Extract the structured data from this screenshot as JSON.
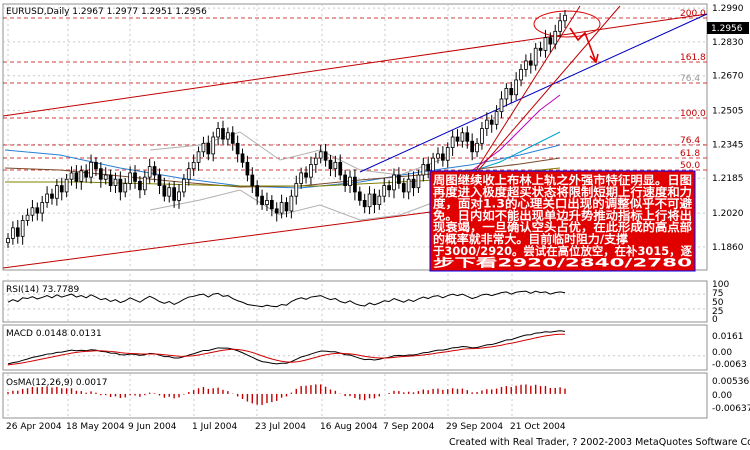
{
  "window": {
    "symbol_line": "EURUSD,Daily  1.2967 1.2977 1.2951 1.2956",
    "price_box": "1.2956",
    "credit": "Created with Real Trader, ? 2002-2003 MetaQuotes Software Corp."
  },
  "annotation": {
    "lines": [
      "周图继续收上布林上轨之外强市特征明显。日图",
      "再度进入极度超买状态将限制短期上行速度和力",
      "度，面对1.3的心理关口出现的调整似乎不可避",
      "免。日内如不能出现单边升势推动指标上行将出",
      "现衰竭，一旦确认空头占优，在此形成的高点部",
      "的概率就非常大。目前临时阻力/支撑",
      "于3000/2920。尝试在高位放空，在补3015，逐",
      "步下看2920/2840/2780"
    ],
    "bg": "#e00000",
    "border": "#0000ff"
  },
  "fib_labels": [
    "200.0",
    "161.8",
    "76.4",
    "100.0",
    "76.4",
    "61.8",
    "50.0"
  ],
  "colors": {
    "candle_up": "#000000",
    "candle_down": "#000000",
    "grid": "#c8c8c8",
    "fib_line": "#c00000",
    "trend_blue": "#0000c0",
    "price_box_bg": "#000000"
  },
  "chart_data": [
    {
      "type": "candlestick",
      "title": "EURUSD,Daily  1.2967 1.2977 1.2951 1.2956",
      "y_ticks": [
        "1.2990",
        "1.2830",
        "1.2670",
        "1.2505",
        "1.2345",
        "1.2185",
        "1.2020",
        "1.1860"
      ],
      "ylim": [
        1.176,
        1.3
      ],
      "x_ticks": [
        "26 Apr 2004",
        "18 May 2004",
        "9 Jun 2004",
        "1 Jul 2004",
        "23 Jul 2004",
        "16 Aug 2004",
        "7 Sep 2004",
        "29 Sep 2004",
        "21 Oct 2004"
      ],
      "close": [
        1.19,
        1.195,
        1.191,
        1.1985,
        1.201,
        1.2045,
        1.202,
        1.207,
        1.211,
        1.209,
        1.215,
        1.212,
        1.218,
        1.221,
        1.217,
        1.222,
        1.219,
        1.226,
        1.223,
        1.218,
        1.22,
        1.215,
        1.218,
        1.212,
        1.216,
        1.221,
        1.217,
        1.213,
        1.219,
        1.224,
        1.22,
        1.215,
        1.21,
        1.214,
        1.208,
        1.212,
        1.218,
        1.223,
        1.226,
        1.231,
        1.235,
        1.23,
        1.238,
        1.242,
        1.237,
        1.24,
        1.235,
        1.23,
        1.226,
        1.22,
        1.215,
        1.21,
        1.206,
        1.208,
        1.204,
        1.202,
        1.207,
        1.203,
        1.21,
        1.216,
        1.221,
        1.219,
        1.225,
        1.228,
        1.231,
        1.227,
        1.223,
        1.226,
        1.22,
        1.215,
        1.219,
        1.212,
        1.208,
        1.205,
        1.211,
        1.206,
        1.21,
        1.215,
        1.213,
        1.22,
        1.216,
        1.212,
        1.218,
        1.214,
        1.22,
        1.225,
        1.222,
        1.228,
        1.23,
        1.227,
        1.233,
        1.238,
        1.236,
        1.24,
        1.236,
        1.231,
        1.235,
        1.242,
        1.246,
        1.244,
        1.25,
        1.256,
        1.261,
        1.258,
        1.265,
        1.27,
        1.274,
        1.272,
        1.28,
        1.279,
        1.285,
        1.282,
        1.288,
        1.293,
        1.2956
      ]
    },
    {
      "type": "line",
      "title": "RSI(14) 73.7789",
      "y_ticks": [
        "100",
        "75",
        "50",
        "25",
        "0"
      ],
      "ylim": [
        0,
        100
      ],
      "values": [
        48,
        55,
        50,
        60,
        58,
        63,
        57,
        61,
        66,
        60,
        68,
        62,
        66,
        70,
        62,
        66,
        60,
        68,
        62,
        55,
        58,
        50,
        55,
        47,
        52,
        60,
        54,
        48,
        57,
        64,
        58,
        50,
        45,
        50,
        42,
        48,
        56,
        62,
        64,
        68,
        70,
        62,
        70,
        72,
        64,
        66,
        58,
        52,
        48,
        42,
        40,
        38,
        36,
        40,
        37,
        36,
        42,
        40,
        50,
        56,
        60,
        56,
        62,
        64,
        66,
        60,
        55,
        58,
        50,
        46,
        52,
        44,
        40,
        38,
        46,
        41,
        46,
        52,
        50,
        58,
        53,
        48,
        55,
        50,
        57,
        62,
        58,
        64,
        66,
        60,
        66,
        70,
        66,
        70,
        64,
        58,
        62,
        68,
        70,
        66,
        70,
        74,
        76,
        70,
        75,
        77,
        78,
        72,
        78,
        74,
        76,
        70,
        74,
        76,
        73.78
      ]
    },
    {
      "type": "line",
      "title": "MACD  0.0148 0.0131",
      "y_ticks": [
        "0.0161",
        "0.00",
        "-0.0063"
      ],
      "ylim": [
        -0.0075,
        0.0175
      ],
      "series": [
        {
          "values": [
            -0.005,
            -0.0042,
            -0.0038,
            -0.0028,
            -0.002,
            -0.001,
            -0.0005,
            0.0002,
            0.001,
            0.0012,
            0.002,
            0.0022,
            0.0028,
            0.0034,
            0.003,
            0.0033,
            0.003,
            0.0036,
            0.0034,
            0.0026,
            0.0024,
            0.0016,
            0.0015,
            0.0006,
            0.0005,
            0.001,
            0.0008,
            0.0002,
            0.0006,
            0.0014,
            0.0012,
            0.0004,
            -0.0006,
            -0.0006,
            -0.0014,
            -0.0014,
            -0.0006,
            0.0004,
            0.0012,
            0.0022,
            0.0032,
            0.0032,
            0.004,
            0.0048,
            0.0046,
            0.0046,
            0.004,
            0.003,
            0.0018,
            0.0004,
            -0.001,
            -0.0024,
            -0.0036,
            -0.004,
            -0.0046,
            -0.005,
            -0.0046,
            -0.0046,
            -0.0036,
            -0.0022,
            -0.0008,
            0.0,
            0.001,
            0.002,
            0.0028,
            0.0028,
            0.0024,
            0.0024,
            0.0016,
            0.0006,
            0.0004,
            -0.0006,
            -0.0016,
            -0.0024,
            -0.0022,
            -0.0026,
            -0.0022,
            -0.0014,
            -0.001,
            0.0,
            0.0002,
            0.0,
            0.0004,
            0.0004,
            0.001,
            0.0018,
            0.002,
            0.0028,
            0.0034,
            0.0034,
            0.004,
            0.0048,
            0.005,
            0.0056,
            0.0054,
            0.0048,
            0.005,
            0.0058,
            0.0066,
            0.0068,
            0.0076,
            0.0086,
            0.0096,
            0.0098,
            0.0108,
            0.0118,
            0.0126,
            0.0128,
            0.0138,
            0.014,
            0.0146,
            0.0144,
            0.0148,
            0.0152,
            0.0148
          ]
        },
        {
          "values": [
            -0.0056,
            -0.0052,
            -0.0048,
            -0.0044,
            -0.0038,
            -0.0032,
            -0.0026,
            -0.002,
            -0.0014,
            -0.0008,
            -0.0002,
            0.0004,
            0.001,
            0.0016,
            0.002,
            0.0024,
            0.0026,
            0.0028,
            0.003,
            0.003,
            0.0028,
            0.0026,
            0.0023,
            0.0019,
            0.0016,
            0.0014,
            0.0013,
            0.0011,
            0.001,
            0.001,
            0.001,
            0.0009,
            0.0006,
            0.0003,
            0.0,
            -0.0003,
            -0.0004,
            -0.0002,
            0.0,
            0.0004,
            0.001,
            0.0016,
            0.0022,
            0.0028,
            0.0033,
            0.0037,
            0.0039,
            0.0038,
            0.0034,
            0.0028,
            0.002,
            0.001,
            -0.0001,
            -0.0011,
            -0.002,
            -0.0028,
            -0.0034,
            -0.0038,
            -0.004,
            -0.0038,
            -0.0033,
            -0.0026,
            -0.0018,
            -0.001,
            -0.0002,
            0.0005,
            0.001,
            0.0014,
            0.0015,
            0.0013,
            0.0011,
            0.0007,
            0.0002,
            -0.0004,
            -0.0008,
            -0.0012,
            -0.0014,
            -0.0014,
            -0.0013,
            -0.001,
            -0.0007,
            -0.0005,
            -0.0003,
            -0.0001,
            0.0001,
            0.0004,
            0.0008,
            0.0012,
            0.0017,
            0.0021,
            0.0025,
            0.003,
            0.0034,
            0.0039,
            0.0042,
            0.0043,
            0.0044,
            0.0047,
            0.0051,
            0.0054,
            0.0059,
            0.0064,
            0.0071,
            0.0076,
            0.0082,
            0.0089,
            0.0096,
            0.0102,
            0.0109,
            0.0115,
            0.0121,
            0.0125,
            0.0129,
            0.0131,
            0.0131
          ]
        }
      ]
    },
    {
      "type": "bar",
      "title": "OsMA(12,26,9)  0.0017",
      "y_ticks": [
        "0.00536",
        "0.00",
        "-0.00637"
      ],
      "ylim": [
        -0.007,
        0.006
      ],
      "values": [
        0.0006,
        0.001,
        0.001,
        0.0016,
        0.0018,
        0.0022,
        0.0021,
        0.0022,
        0.0024,
        0.002,
        0.0022,
        0.0018,
        0.0018,
        0.0018,
        0.001,
        0.0009,
        0.0004,
        0.0008,
        0.0004,
        -0.0004,
        -0.0004,
        -0.001,
        -0.0008,
        -0.0013,
        -0.0011,
        -0.0004,
        -0.0005,
        -0.0009,
        -0.0004,
        0.0004,
        0.0002,
        -0.0005,
        -0.0012,
        -0.0009,
        -0.0014,
        -0.0011,
        -0.0002,
        0.0006,
        0.0012,
        0.0018,
        0.0022,
        0.0016,
        0.0018,
        0.002,
        0.0013,
        0.0009,
        0.0001,
        -0.0008,
        -0.0016,
        -0.0024,
        -0.003,
        -0.0034,
        -0.0035,
        -0.0029,
        -0.0026,
        -0.0022,
        -0.0012,
        -0.0008,
        0.0004,
        0.0016,
        0.0025,
        0.0026,
        0.0028,
        0.003,
        0.003,
        0.0023,
        0.0014,
        0.001,
        0.0001,
        -0.0007,
        -0.0007,
        -0.0013,
        -0.0018,
        -0.002,
        -0.0014,
        -0.0014,
        -0.0008,
        0.0,
        0.0003,
        0.001,
        0.0009,
        0.0005,
        0.0007,
        0.0005,
        0.0009,
        0.0014,
        0.0012,
        0.0016,
        0.0017,
        0.0013,
        0.0015,
        0.0018,
        0.0016,
        0.0017,
        0.0012,
        0.0005,
        0.0006,
        0.0011,
        0.0015,
        0.0014,
        0.0017,
        0.0022,
        0.0025,
        0.0022,
        0.0026,
        0.0029,
        0.003,
        0.0026,
        0.0029,
        0.0025,
        0.0025,
        0.0019,
        0.0019,
        0.0021,
        0.0017
      ]
    }
  ]
}
